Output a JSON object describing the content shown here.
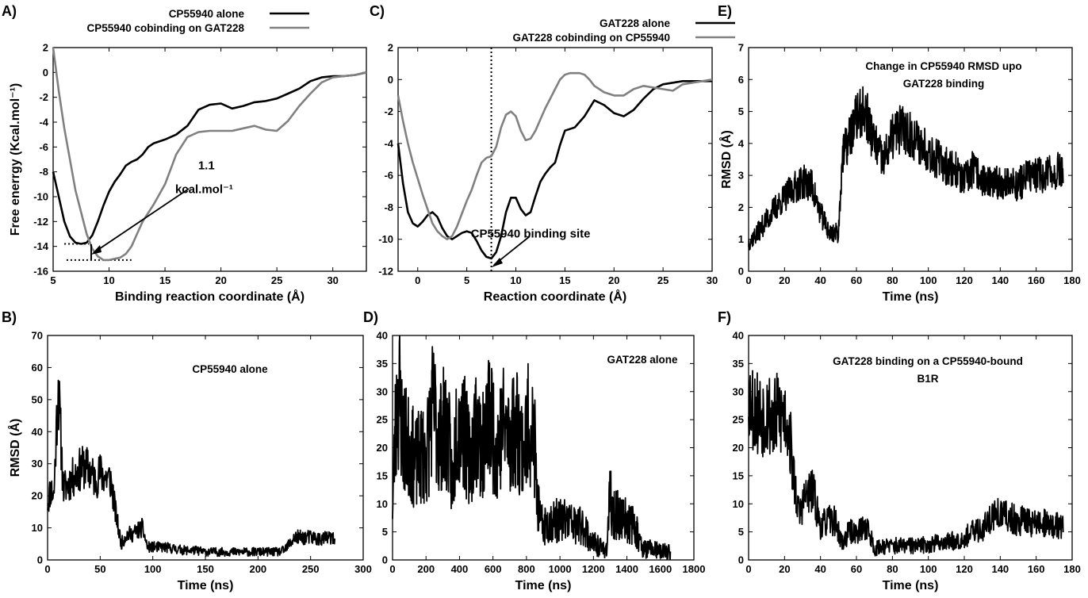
{
  "chart_data": [
    {
      "id": "A",
      "panel_label": "A)",
      "type": "line",
      "xlabel": "Binding reaction coordinate (Å)",
      "ylabel": "Free enerrgy (Kcal.mol⁻¹)",
      "xlim": [
        5,
        33
      ],
      "ylim": [
        -16,
        2
      ],
      "xticks": [
        5,
        10,
        15,
        20,
        25,
        30
      ],
      "yticks": [
        2,
        0,
        -2,
        -4,
        -6,
        -8,
        -10,
        -12,
        -14,
        -16
      ],
      "legend_position": "top",
      "series": [
        {
          "name": "CP55940 alone",
          "color": "#000000",
          "x": [
            5,
            5.5,
            6,
            6.5,
            7,
            7.5,
            8,
            8.5,
            9,
            9.5,
            10,
            10.5,
            11,
            11.5,
            12,
            12.5,
            13,
            13.5,
            14,
            15,
            16,
            17,
            18,
            19,
            20,
            21,
            22,
            23,
            24,
            25,
            26,
            27,
            28,
            29,
            30,
            31,
            32,
            33
          ],
          "y": [
            -8,
            -10,
            -12,
            -13.2,
            -13.7,
            -13.8,
            -13.7,
            -13.1,
            -12.0,
            -10.7,
            -9.6,
            -8.8,
            -8.2,
            -7.5,
            -7.2,
            -7.0,
            -6.6,
            -6.0,
            -5.7,
            -5.4,
            -5.0,
            -4.3,
            -3.0,
            -2.6,
            -2.5,
            -2.9,
            -2.7,
            -2.4,
            -2.3,
            -2.1,
            -1.7,
            -1.3,
            -0.7,
            -0.4,
            -0.3,
            -0.3,
            -0.2,
            0.0
          ]
        },
        {
          "name": "CP55940 cobinding on GAT228",
          "color": "#808080",
          "x": [
            5,
            5.5,
            6,
            7,
            8,
            8.5,
            9,
            9.5,
            10,
            10.5,
            11,
            11.5,
            12,
            12.5,
            13,
            14,
            15,
            16,
            17,
            18,
            19,
            20,
            21,
            22,
            23,
            24,
            25,
            26,
            27,
            28,
            29,
            30,
            31,
            32,
            33
          ],
          "y": [
            2,
            -1.5,
            -4.5,
            -9.5,
            -13.0,
            -14.2,
            -14.8,
            -15.1,
            -15.1,
            -15.0,
            -14.9,
            -14.6,
            -14.0,
            -13.0,
            -12.0,
            -10.6,
            -9.0,
            -6.6,
            -5.2,
            -4.8,
            -4.7,
            -4.7,
            -4.7,
            -4.5,
            -4.3,
            -4.6,
            -4.7,
            -3.9,
            -2.7,
            -1.7,
            -0.8,
            -0.4,
            -0.3,
            -0.2,
            0.0
          ]
        }
      ],
      "annotations": [
        {
          "text": "1.1",
          "x": 18.7,
          "y": -7.8
        },
        {
          "text": "kcal.mol⁻¹",
          "x": 18.5,
          "y": -9.7
        }
      ],
      "reference_lines": [
        {
          "y": -13.8,
          "x_range": [
            6,
            8.2
          ],
          "style": "dotted"
        },
        {
          "y": -15.1,
          "x_range": [
            6.2,
            12
          ],
          "style": "dotted"
        }
      ]
    },
    {
      "id": "B",
      "panel_label": "B)",
      "type": "line",
      "title": "CP55940 alone",
      "xlabel": "Time (ns)",
      "ylabel": "RMSD (Å)",
      "xlim": [
        0,
        300
      ],
      "ylim": [
        0,
        70
      ],
      "xticks": [
        0,
        50,
        100,
        150,
        200,
        250,
        300
      ],
      "yticks": [
        0,
        10,
        20,
        30,
        40,
        50,
        60,
        70
      ],
      "series": [
        {
          "color": "#000000",
          "x": [
            0,
            3,
            6,
            10,
            15,
            20,
            25,
            30,
            35,
            40,
            45,
            50,
            55,
            60,
            65,
            70,
            75,
            80,
            85,
            90,
            95,
            100,
            110,
            120,
            130,
            140,
            150,
            160,
            170,
            180,
            190,
            200,
            210,
            220,
            225,
            230,
            235,
            240,
            250,
            260,
            270,
            273
          ],
          "y": [
            18,
            22,
            20,
            55,
            22,
            24,
            26,
            28,
            29,
            28,
            25,
            27,
            26,
            25,
            14,
            5,
            8,
            8,
            9,
            10,
            4,
            4,
            4,
            3.5,
            3,
            3,
            2.5,
            2.5,
            2.5,
            2.5,
            2.5,
            2.5,
            2.5,
            2.5,
            3,
            5,
            7,
            7,
            7,
            6.5,
            7,
            5.5
          ]
        }
      ]
    },
    {
      "id": "C",
      "panel_label": "C)",
      "type": "line",
      "xlabel": "Reaction coordinate (Å)",
      "xlim": [
        -2,
        30
      ],
      "ylim": [
        -12,
        2
      ],
      "xticks": [
        0,
        5,
        10,
        15,
        20,
        25,
        30
      ],
      "yticks": [
        2,
        0,
        -2,
        -4,
        -6,
        -8,
        -10,
        -12
      ],
      "legend_position": "top",
      "series": [
        {
          "name": "GAT228 alone",
          "color": "#000000",
          "x": [
            -2,
            -1.5,
            -1,
            -0.5,
            0,
            0.5,
            1,
            1.5,
            2,
            2.5,
            3,
            3.5,
            4,
            4.5,
            5,
            5.5,
            6,
            6.5,
            7,
            7.5,
            8,
            8.5,
            9,
            9.5,
            10,
            10.5,
            11,
            11.5,
            12,
            12.5,
            13,
            13.5,
            14,
            14.5,
            15,
            16,
            17,
            18,
            19,
            20,
            21,
            22,
            23,
            24,
            25,
            26,
            27,
            28,
            29,
            30
          ],
          "y": [
            -4,
            -6.5,
            -8.3,
            -9.0,
            -9.2,
            -8.9,
            -8.5,
            -8.3,
            -8.6,
            -9.3,
            -9.8,
            -10.0,
            -9.8,
            -9.6,
            -9.5,
            -9.6,
            -10.1,
            -10.7,
            -11.1,
            -11.2,
            -10.8,
            -9.8,
            -8.3,
            -7.4,
            -7.4,
            -8.1,
            -8.5,
            -8.3,
            -7.3,
            -6.4,
            -5.9,
            -5.5,
            -5.2,
            -4.1,
            -3.2,
            -3.0,
            -2.3,
            -1.3,
            -1.6,
            -2.1,
            -2.3,
            -1.9,
            -1.2,
            -0.6,
            -0.3,
            -0.2,
            -0.1,
            -0.1,
            -0.1,
            -0.1
          ]
        },
        {
          "name": "GAT228 cobinding on CP55940",
          "color": "#808080",
          "x": [
            -2,
            -1.5,
            -1,
            -0.5,
            0,
            0.5,
            1,
            1.5,
            2,
            2.5,
            3,
            3.5,
            4,
            4.5,
            5,
            5.5,
            6,
            6.5,
            7,
            7.5,
            8,
            8.5,
            9,
            9.5,
            10,
            10.5,
            11,
            11.5,
            12,
            12.5,
            13,
            13.5,
            14,
            14.5,
            15,
            15.5,
            16,
            16.5,
            17,
            17.5,
            18,
            19,
            20,
            21,
            22,
            23,
            24,
            25,
            26,
            27,
            28,
            29,
            30
          ],
          "y": [
            -1,
            -2.6,
            -4.0,
            -5.2,
            -6.2,
            -7.2,
            -8.1,
            -9.0,
            -9.5,
            -9.8,
            -10.0,
            -9.8,
            -9.2,
            -8.4,
            -7.6,
            -6.9,
            -6.0,
            -5.2,
            -4.9,
            -4.8,
            -4.2,
            -3.0,
            -2.2,
            -2.0,
            -2.3,
            -3.2,
            -3.8,
            -3.7,
            -3.2,
            -2.5,
            -1.8,
            -1.2,
            -0.6,
            0.0,
            0.3,
            0.4,
            0.4,
            0.4,
            0.3,
            0.0,
            -0.4,
            -0.8,
            -1.0,
            -1.0,
            -0.6,
            -0.4,
            -0.5,
            -0.6,
            -0.7,
            -0.3,
            -0.2,
            -0.1,
            0.0
          ]
        }
      ],
      "annotations": [
        {
          "text": "CP55940 binding site",
          "x": 11.5,
          "y": -9.9
        }
      ],
      "reference_lines": [
        {
          "x": 7.5,
          "style": "dotted"
        }
      ]
    },
    {
      "id": "D",
      "panel_label": "D)",
      "type": "line",
      "title": "GAT228 alone",
      "xlabel": "Time (ns)",
      "xlim": [
        0,
        1800
      ],
      "ylim": [
        0,
        40
      ],
      "xticks": [
        0,
        200,
        400,
        600,
        800,
        1000,
        1200,
        1400,
        1600,
        1800
      ],
      "yticks": [
        0,
        5,
        10,
        15,
        20,
        25,
        30,
        35,
        40
      ],
      "series": [
        {
          "color": "#000000",
          "x": [
            0,
            20,
            40,
            60,
            100,
            140,
            180,
            200,
            240,
            280,
            320,
            340,
            360,
            380,
            420,
            460,
            500,
            540,
            580,
            620,
            660,
            700,
            740,
            780,
            820,
            850,
            860,
            880,
            900,
            950,
            1000,
            1050,
            1100,
            1150,
            1170,
            1200,
            1250,
            1280,
            1300,
            1310,
            1350,
            1400,
            1450,
            1480,
            1500,
            1550,
            1600,
            1650,
            1660
          ],
          "y": [
            10,
            25,
            30,
            22,
            20,
            17,
            19,
            18,
            27,
            22,
            24,
            20,
            12,
            25,
            24,
            18,
            24,
            20,
            26,
            20,
            24,
            22,
            24,
            20,
            25,
            20,
            12,
            7,
            6,
            7,
            7,
            7,
            6,
            6,
            4,
            3,
            2,
            2,
            12,
            8,
            8,
            7,
            6,
            3,
            2,
            2,
            1.5,
            1.5,
            1
          ]
        }
      ]
    },
    {
      "id": "E",
      "panel_label": "E)",
      "type": "line",
      "title": "Change in CP55940 RMSD upon GAT228 binding",
      "xlabel": "Time (ns)",
      "ylabel": "RMSD (Å)",
      "xlim": [
        0,
        180
      ],
      "ylim": [
        0,
        7
      ],
      "xticks": [
        0,
        20,
        40,
        60,
        80,
        100,
        120,
        140,
        160,
        180
      ],
      "yticks": [
        0,
        1,
        2,
        3,
        4,
        5,
        6,
        7
      ],
      "series": [
        {
          "color": "#000000",
          "x": [
            0,
            5,
            10,
            15,
            20,
            25,
            30,
            35,
            40,
            45,
            50,
            52,
            55,
            60,
            65,
            70,
            75,
            80,
            85,
            90,
            95,
            100,
            105,
            110,
            115,
            120,
            125,
            130,
            135,
            140,
            145,
            150,
            155,
            160,
            165,
            170,
            175
          ],
          "y": [
            0.9,
            1.2,
            1.6,
            2.0,
            2.3,
            2.6,
            2.8,
            2.7,
            1.8,
            1.2,
            1.2,
            3.5,
            4.0,
            4.8,
            5.0,
            4.0,
            3.4,
            4.2,
            4.5,
            4.3,
            4.0,
            3.8,
            3.5,
            3.3,
            3.2,
            2.8,
            3.2,
            2.9,
            2.7,
            2.8,
            2.8,
            2.7,
            3.0,
            3.0,
            3.0,
            3.1,
            3.2
          ]
        }
      ]
    },
    {
      "id": "F",
      "panel_label": "F)",
      "type": "line",
      "title": "GAT228 binding on a CP55940-bound CB1R",
      "xlabel": "Time (ns)",
      "xlim": [
        0,
        180
      ],
      "ylim": [
        0,
        40
      ],
      "xticks": [
        0,
        20,
        40,
        60,
        80,
        100,
        120,
        140,
        160,
        180
      ],
      "yticks": [
        0,
        5,
        10,
        15,
        20,
        25,
        30,
        35,
        40
      ],
      "series": [
        {
          "color": "#000000",
          "x": [
            0,
            3,
            6,
            10,
            14,
            18,
            22,
            25,
            28,
            30,
            33,
            36,
            40,
            44,
            48,
            52,
            56,
            60,
            66,
            70,
            75,
            80,
            85,
            90,
            95,
            100,
            105,
            110,
            115,
            120,
            125,
            130,
            133,
            136,
            140,
            145,
            150,
            155,
            160,
            165,
            170,
            175
          ],
          "y": [
            30,
            27,
            26,
            27,
            25,
            26,
            25,
            15,
            8,
            10,
            12,
            12,
            6,
            7,
            7,
            3,
            5,
            5,
            6,
            2,
            2.5,
            2.5,
            2.5,
            2.5,
            2.5,
            2.8,
            3,
            3.2,
            3.5,
            4,
            5,
            5.5,
            7,
            8,
            8,
            7.5,
            7,
            7,
            6.5,
            6.5,
            6,
            6
          ]
        }
      ]
    }
  ]
}
